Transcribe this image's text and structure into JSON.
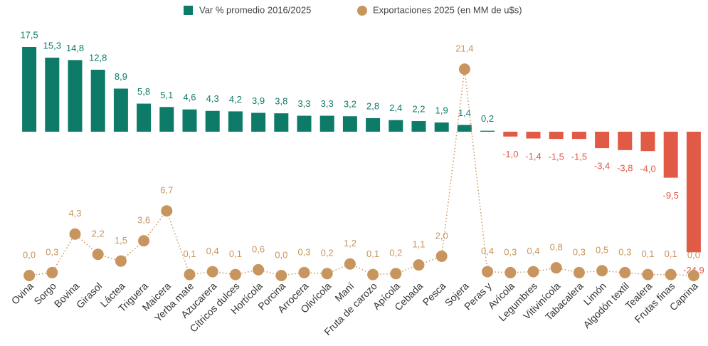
{
  "chart_data": {
    "type": "bar_line",
    "categories": [
      "Ovina",
      "Sorgo",
      "Bovina",
      "Girasol",
      "Láctea",
      "Triguera",
      "Maicera",
      "Yerba mate",
      "Azucarera",
      "Cítricos dulces",
      "Hortícola",
      "Porcina",
      "Arrocera",
      "Olivícola",
      "Maní",
      "Fruta de carozo",
      "Apícola",
      "Cebada",
      "Pesca",
      "Sojera",
      "Peras y",
      "Avícola",
      "Legumbres",
      "Vitivinícola",
      "Tabacalera",
      "Limón",
      "Algodón textil",
      "Tealera",
      "Frutas finas",
      "Caprina"
    ],
    "series": [
      {
        "name": "Var % promedio 2016/2025",
        "type": "bar",
        "color": "#0e7a68",
        "negative_color": "#e05a45",
        "values": [
          17.5,
          15.3,
          14.8,
          12.8,
          8.9,
          5.8,
          5.1,
          4.6,
          4.3,
          4.2,
          3.9,
          3.8,
          3.3,
          3.3,
          3.2,
          2.8,
          2.4,
          2.2,
          1.9,
          1.4,
          0.2,
          -1.0,
          -1.4,
          -1.5,
          -1.5,
          -3.4,
          -3.8,
          -4.0,
          -9.5,
          -24.9
        ],
        "value_labels": [
          "17,5",
          "15,3",
          "14,8",
          "12,8",
          "8,9",
          "5,8",
          "5,1",
          "4,6",
          "4,3",
          "4,2",
          "3,9",
          "3,8",
          "3,3",
          "3,3",
          "3,2",
          "2,8",
          "2,4",
          "2,2",
          "1,9",
          "1,4",
          "0,2",
          "-1,0",
          "-1,4",
          "-1,5",
          "-1,5",
          "-3,4",
          "-3,8",
          "-4,0",
          "-9,5",
          "-24,9"
        ]
      },
      {
        "name": "Exportaciones 2025 (en MM de u$s)",
        "type": "line",
        "axis": "y2",
        "color": "#c8955e",
        "values": [
          0.0,
          0.3,
          4.3,
          2.2,
          1.5,
          3.6,
          6.7,
          0.1,
          0.4,
          0.1,
          0.6,
          0.0,
          0.3,
          0.2,
          1.2,
          0.1,
          0.2,
          1.1,
          2.0,
          21.4,
          0.4,
          0.3,
          0.4,
          0.8,
          0.3,
          0.5,
          0.3,
          0.1,
          0.1,
          0.0
        ],
        "value_labels": [
          "0,0",
          "0,3",
          "4,3",
          "2,2",
          "1,5",
          "3,6",
          "6,7",
          "0,1",
          "0,4",
          "0,1",
          "0,6",
          "0,0",
          "0,3",
          "0,2",
          "1,2",
          "0,1",
          "0,2",
          "1,1",
          "2,0",
          "21,4",
          "0,4",
          "0,3",
          "0,4",
          "0,8",
          "0,3",
          "0,5",
          "0,3",
          "0,1",
          "0,1",
          "0,0"
        ]
      }
    ],
    "ylim": [
      -25,
      18
    ],
    "y2lim": [
      0,
      22
    ]
  }
}
